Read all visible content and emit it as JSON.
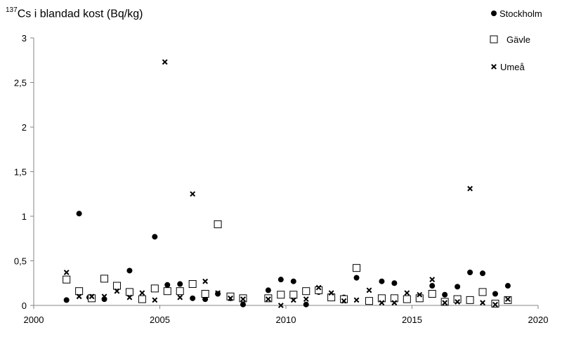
{
  "chart_data": {
    "type": "scatter",
    "ylabel_sup": "137",
    "ylabel_main": "Cs i blandad kost (Bq/kg)",
    "xlim": [
      2000,
      2020
    ],
    "ylim": [
      0,
      3
    ],
    "xticks": [
      {
        "value": 2000,
        "label": "2000"
      },
      {
        "value": 2005,
        "label": "2005"
      },
      {
        "value": 2010,
        "label": "2010"
      },
      {
        "value": 2015,
        "label": "2015"
      },
      {
        "value": 2020,
        "label": "2020"
      }
    ],
    "yticks": [
      {
        "value": 0,
        "label": "0"
      },
      {
        "value": 0.5,
        "label": "0,5"
      },
      {
        "value": 1,
        "label": "1"
      },
      {
        "value": 1.5,
        "label": "1,5"
      },
      {
        "value": 2,
        "label": "2"
      },
      {
        "value": 2.5,
        "label": "2,5"
      },
      {
        "value": 3,
        "label": "3"
      }
    ],
    "grid": false,
    "legend_position": "top-right",
    "series": [
      {
        "name": "Stockholm",
        "marker": "circle",
        "points": [
          [
            2001.3,
            0.06
          ],
          [
            2001.8,
            1.03
          ],
          [
            2002.2,
            0.09
          ],
          [
            2002.8,
            0.07
          ],
          [
            2003.3,
            0.22
          ],
          [
            2003.8,
            0.39
          ],
          [
            2004.3,
            0.07
          ],
          [
            2004.8,
            0.77
          ],
          [
            2005.3,
            0.23
          ],
          [
            2005.8,
            0.24
          ],
          [
            2006.3,
            0.08
          ],
          [
            2006.8,
            0.07
          ],
          [
            2007.3,
            0.13
          ],
          [
            2007.8,
            0.08
          ],
          [
            2008.3,
            0.01
          ],
          [
            2009.3,
            0.17
          ],
          [
            2009.8,
            0.29
          ],
          [
            2010.3,
            0.27
          ],
          [
            2010.8,
            0.01
          ],
          [
            2011.3,
            0.15
          ],
          [
            2011.8,
            0.11
          ],
          [
            2012.3,
            0.09
          ],
          [
            2012.8,
            0.31
          ],
          [
            2013.3,
            0.05
          ],
          [
            2013.8,
            0.27
          ],
          [
            2014.3,
            0.25
          ],
          [
            2014.8,
            0.07
          ],
          [
            2015.3,
            0.09
          ],
          [
            2015.8,
            0.22
          ],
          [
            2016.3,
            0.12
          ],
          [
            2016.8,
            0.21
          ],
          [
            2017.3,
            0.37
          ],
          [
            2017.8,
            0.36
          ],
          [
            2018.3,
            0.13
          ],
          [
            2018.8,
            0.22
          ]
        ]
      },
      {
        "name": "Gävle",
        "marker": "square",
        "points": [
          [
            2001.3,
            0.29
          ],
          [
            2001.8,
            0.16
          ],
          [
            2002.3,
            0.08
          ],
          [
            2002.8,
            0.3
          ],
          [
            2003.3,
            0.22
          ],
          [
            2003.8,
            0.15
          ],
          [
            2004.3,
            0.07
          ],
          [
            2004.8,
            0.19
          ],
          [
            2005.3,
            0.16
          ],
          [
            2005.8,
            0.16
          ],
          [
            2006.3,
            0.24
          ],
          [
            2006.8,
            0.13
          ],
          [
            2007.3,
            0.91
          ],
          [
            2007.8,
            0.1
          ],
          [
            2008.3,
            0.08
          ],
          [
            2009.3,
            0.08
          ],
          [
            2009.8,
            0.12
          ],
          [
            2010.3,
            0.12
          ],
          [
            2010.8,
            0.16
          ],
          [
            2011.3,
            0.17
          ],
          [
            2011.8,
            0.09
          ],
          [
            2012.3,
            0.07
          ],
          [
            2012.8,
            0.42
          ],
          [
            2013.3,
            0.05
          ],
          [
            2013.8,
            0.08
          ],
          [
            2014.3,
            0.08
          ],
          [
            2014.8,
            0.07
          ],
          [
            2015.3,
            0.08
          ],
          [
            2015.8,
            0.13
          ],
          [
            2016.3,
            0.04
          ],
          [
            2016.8,
            0.07
          ],
          [
            2017.3,
            0.06
          ],
          [
            2017.8,
            0.15
          ],
          [
            2018.3,
            0.02
          ],
          [
            2018.8,
            0.06
          ]
        ]
      },
      {
        "name": "Umeå",
        "marker": "x",
        "points": [
          [
            2001.3,
            0.37
          ],
          [
            2001.8,
            0.1
          ],
          [
            2002.3,
            0.1
          ],
          [
            2002.8,
            0.1
          ],
          [
            2003.3,
            0.16
          ],
          [
            2003.8,
            0.09
          ],
          [
            2004.3,
            0.14
          ],
          [
            2004.8,
            0.06
          ],
          [
            2005.2,
            2.73
          ],
          [
            2005.8,
            0.09
          ],
          [
            2006.3,
            1.25
          ],
          [
            2006.8,
            0.27
          ],
          [
            2007.3,
            0.14
          ],
          [
            2007.8,
            0.08
          ],
          [
            2008.3,
            0.07
          ],
          [
            2009.3,
            0.07
          ],
          [
            2009.8,
            0.0
          ],
          [
            2010.3,
            0.06
          ],
          [
            2010.8,
            0.07
          ],
          [
            2011.3,
            0.2
          ],
          [
            2011.8,
            0.14
          ],
          [
            2012.3,
            0.05
          ],
          [
            2012.8,
            0.06
          ],
          [
            2013.3,
            0.17
          ],
          [
            2013.8,
            0.03
          ],
          [
            2014.3,
            0.03
          ],
          [
            2014.8,
            0.14
          ],
          [
            2015.3,
            0.12
          ],
          [
            2015.8,
            0.29
          ],
          [
            2016.3,
            0.03
          ],
          [
            2016.8,
            0.04
          ],
          [
            2017.3,
            1.31
          ],
          [
            2017.8,
            0.03
          ],
          [
            2018.3,
            0.01
          ],
          [
            2018.8,
            0.07
          ]
        ]
      }
    ]
  }
}
